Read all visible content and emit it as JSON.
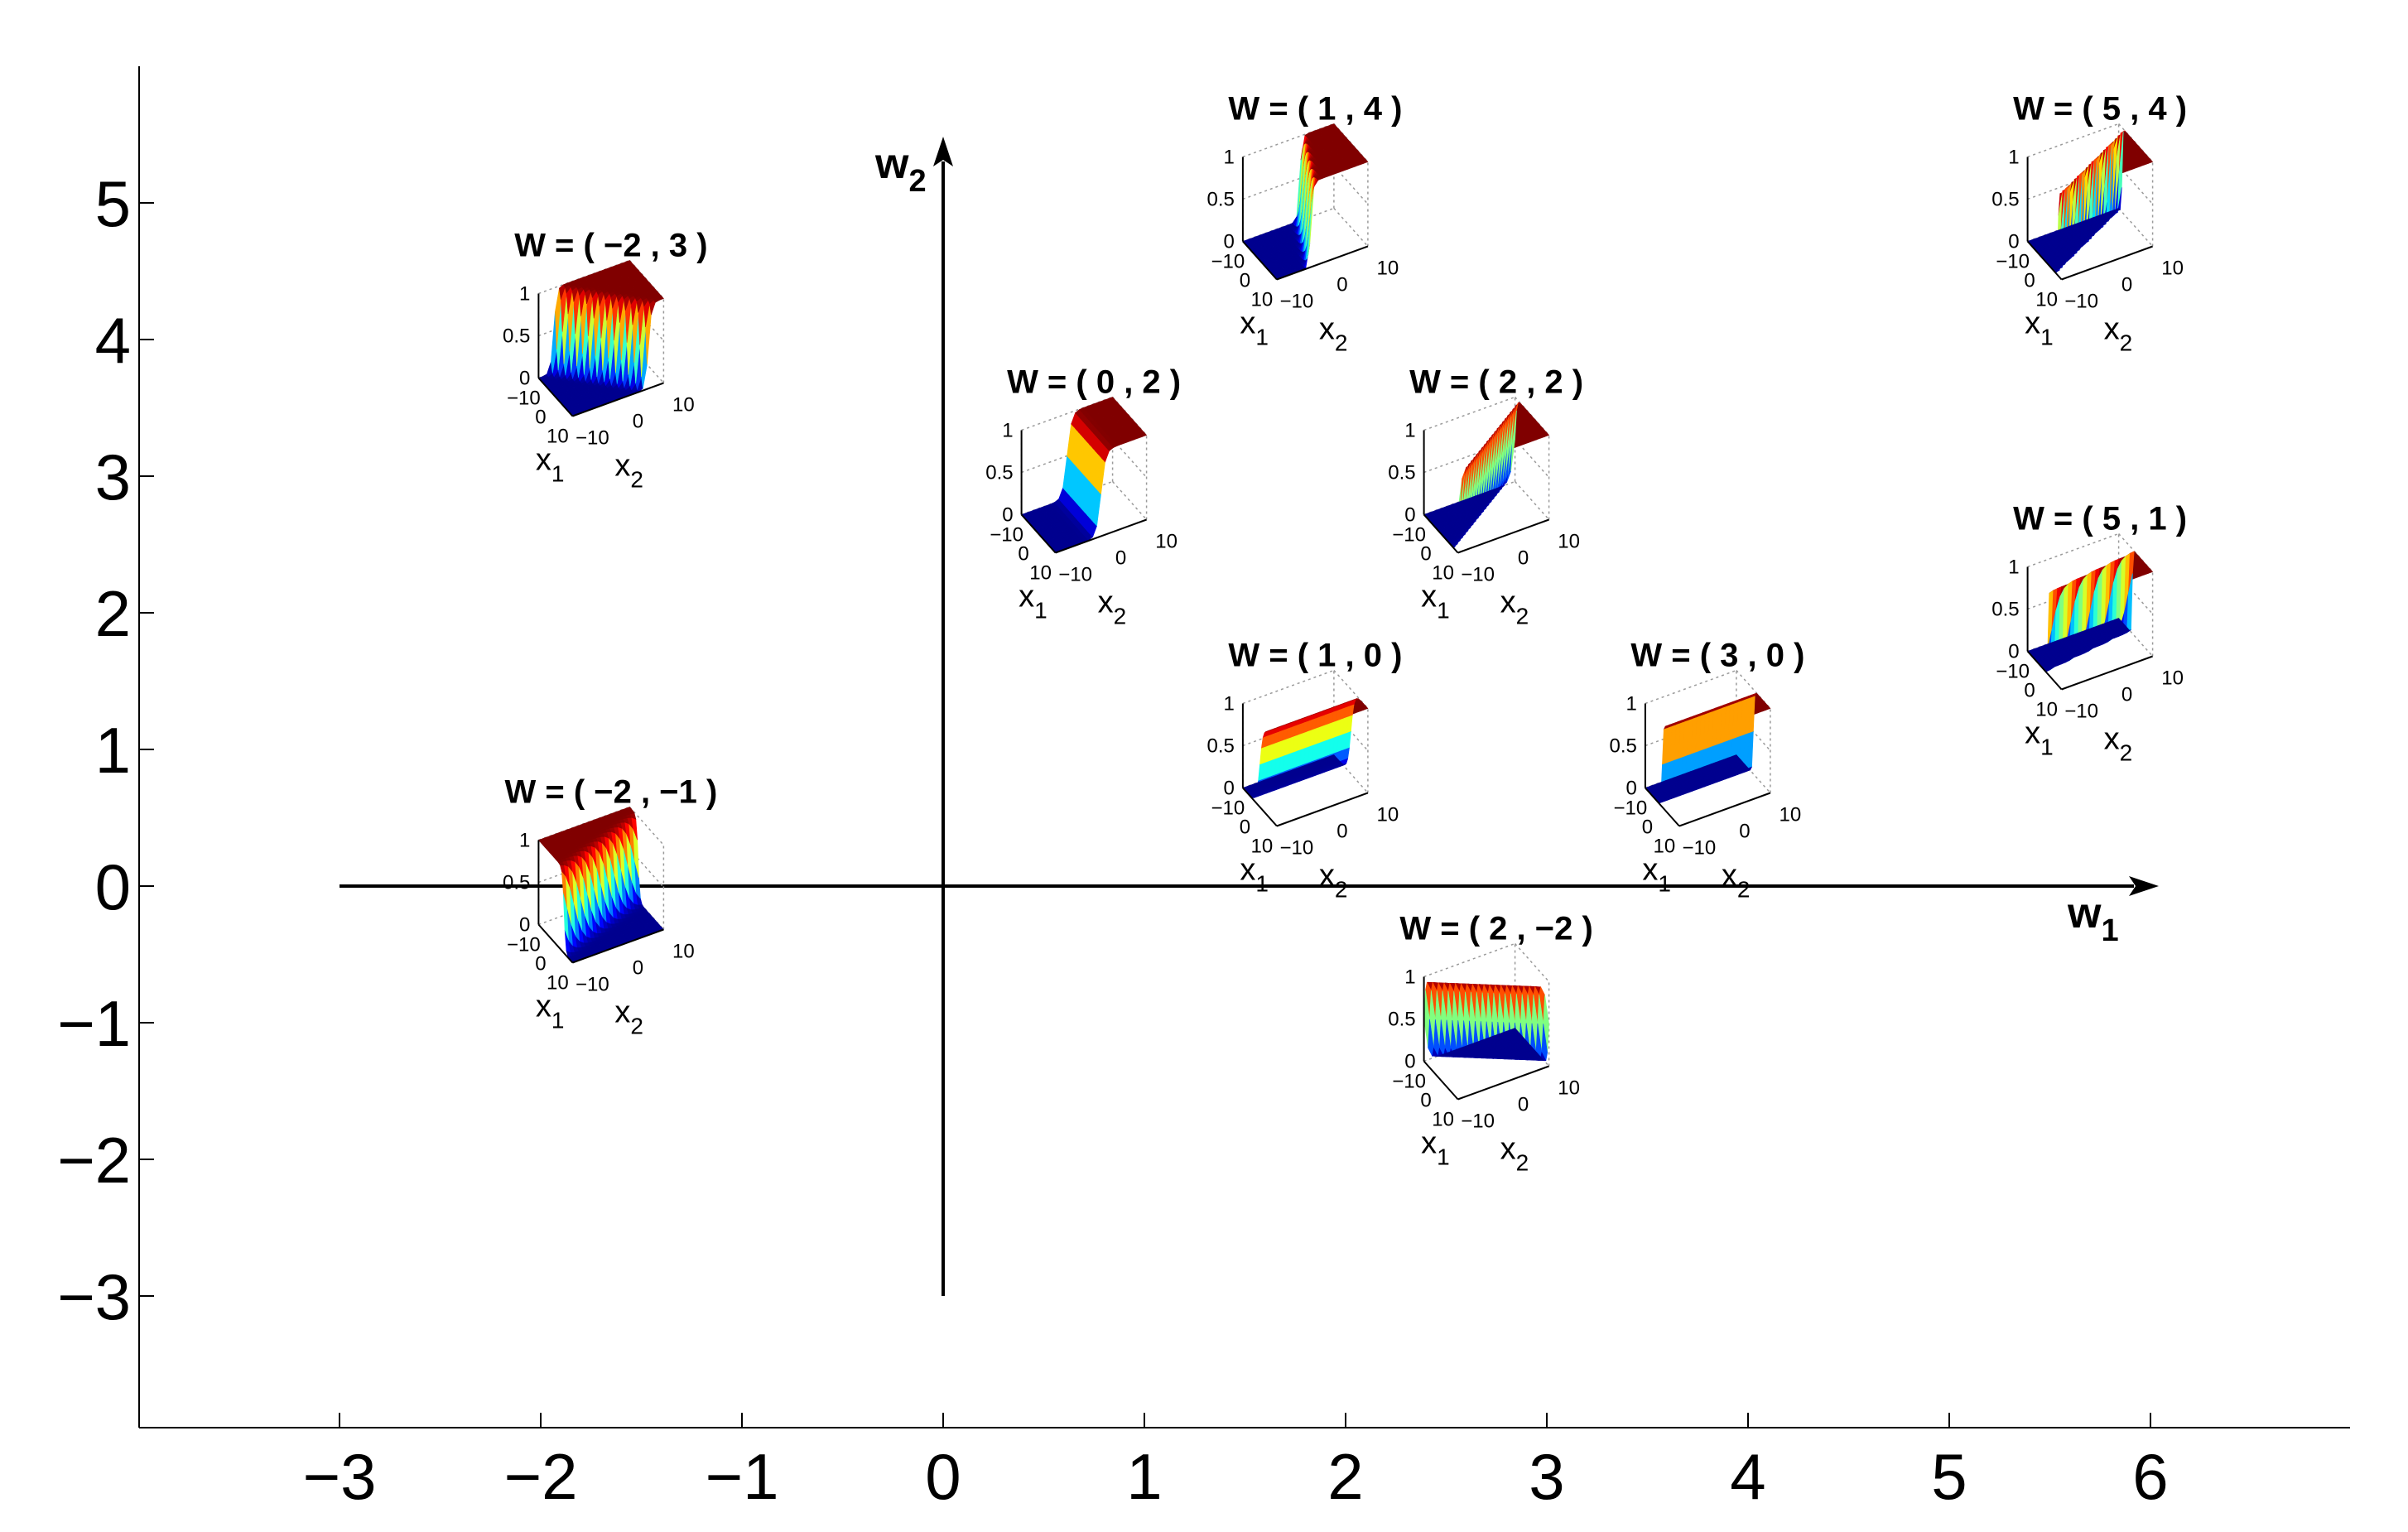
{
  "chart_data": {
    "type": "scatter",
    "xlim": [
      -3.9,
      7
    ],
    "ylim": [
      -4,
      6
    ],
    "xticks": [
      "−3",
      "−2",
      "−1",
      "0",
      "1",
      "2",
      "3",
      "4",
      "5",
      "6"
    ],
    "yticks": [
      "−3",
      "−2",
      "−1",
      "0",
      "1",
      "2",
      "3",
      "4",
      "5"
    ],
    "x_tick_values": [
      -3,
      -2,
      -1,
      0,
      1,
      2,
      3,
      4,
      5,
      6
    ],
    "y_tick_values": [
      -3,
      -2,
      -1,
      0,
      1,
      2,
      3,
      4,
      5
    ],
    "inner_axes": {
      "x_label": "w",
      "x_label_sub": "1",
      "y_label": "w",
      "y_label_sub": "2",
      "x_range": [
        -3,
        6
      ],
      "y_range": [
        -3,
        5
      ]
    },
    "insets": [
      {
        "title": "W = ( −2 , 3 )",
        "w1": -2,
        "w2": 3,
        "mark_w": [
          -1.7,
          3.7
        ]
      },
      {
        "title": "W = ( 1 , 4 )",
        "w1": 1,
        "w2": 4,
        "mark_w": [
          1.8,
          4.7
        ]
      },
      {
        "title": "W = ( 5 , 4 )",
        "w1": 5,
        "w2": 4,
        "mark_w": [
          5.7,
          4.7
        ]
      },
      {
        "title": "W = ( 0 , 2 )",
        "w1": 0,
        "w2": 2,
        "mark_w": [
          0.7,
          2.7
        ]
      },
      {
        "title": "W = ( 2 , 2 )",
        "w1": 2,
        "w2": 2,
        "mark_w": [
          2.7,
          2.7
        ]
      },
      {
        "title": "W = ( 5 , 1 )",
        "w1": 5,
        "w2": 1,
        "mark_w": [
          5.7,
          1.7
        ]
      },
      {
        "title": "W = ( 1 , 0 )",
        "w1": 1,
        "w2": 0,
        "mark_w": [
          1.8,
          0.7
        ]
      },
      {
        "title": "W = ( 3 , 0 )",
        "w1": 3,
        "w2": 0,
        "mark_w": [
          3.8,
          0.7
        ]
      },
      {
        "title": "W = ( −2 , −1 )",
        "w1": -2,
        "w2": -1,
        "mark_w": [
          -1.7,
          -0.3
        ]
      },
      {
        "title": "W = ( 2 , −2 )",
        "w1": 2,
        "w2": -2,
        "mark_w": [
          2.7,
          -1.3
        ]
      }
    ],
    "inset_axes": {
      "z_ticks": [
        "0",
        "0.5",
        "1"
      ],
      "x_ticks": [
        "−10",
        "0",
        "10"
      ],
      "y_ticks": [
        "−10",
        "0",
        "10"
      ],
      "x_label": "x",
      "x_label_sub": "1",
      "y_label": "x",
      "y_label_sub": "2"
    },
    "colormap": [
      "#00008f",
      "#0000ff",
      "#0080ff",
      "#00ffff",
      "#80ff80",
      "#ffff00",
      "#ff8000",
      "#ff0000",
      "#800000"
    ]
  }
}
